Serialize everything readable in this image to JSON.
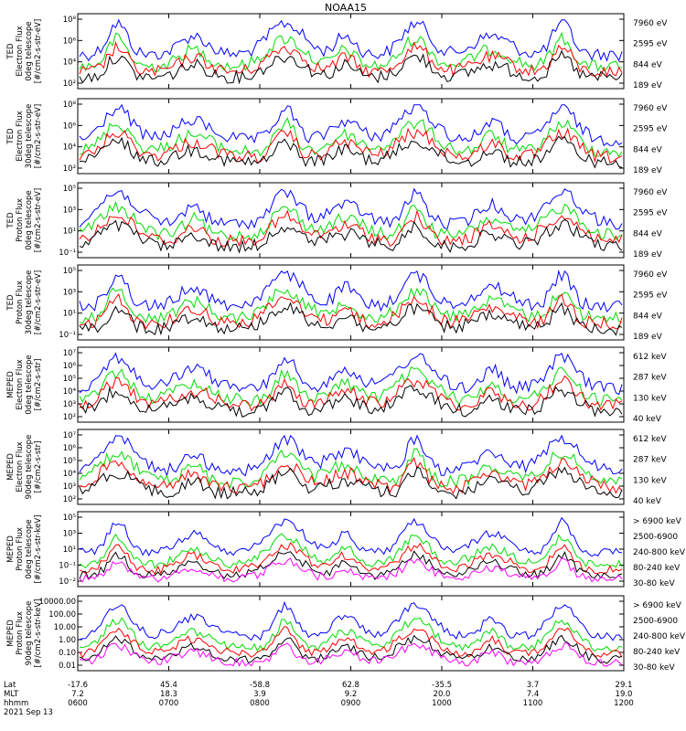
{
  "chart_data": {
    "type": "line",
    "title": "NOAA15",
    "time_axis": {
      "hhmm": [
        "0600",
        "0700",
        "0800",
        "0900",
        "1000",
        "1100",
        "1200"
      ],
      "lat": [
        "-17.6",
        "45.4",
        "-58.8",
        "62.8",
        "-35.5",
        "3.7",
        "29.1"
      ],
      "mlt": [
        "7.2",
        "18.3",
        "3.9",
        "9.2",
        "20.0",
        "7.4",
        "19.0"
      ],
      "row_labels": [
        "Lat",
        "MLT",
        "hhmm"
      ],
      "date": "2021 Sep 13"
    },
    "panels": [
      {
        "ylabel": [
          "TED",
          "Electron Flux",
          "0deg telescope",
          "[#/cm2-s-str-eV]"
        ],
        "scale": "log",
        "ticks": [
          "10²",
          "10⁴",
          "10⁶",
          "10⁸"
        ],
        "legend": [
          {
            "label": "7960 eV",
            "color": "#000000"
          },
          {
            "label": "2595 eV",
            "color": "#ff0000"
          },
          {
            "label": "844 eV",
            "color": "#00dd00"
          },
          {
            "label": "189 eV",
            "color": "#0000ff"
          }
        ]
      },
      {
        "ylabel": [
          "TED",
          "Electron Flux",
          "30deg telescope",
          "[#/cm2-s-str-eV]"
        ],
        "scale": "log",
        "ticks": [
          "10²",
          "10⁴",
          "10⁶",
          "10⁸"
        ],
        "legend": [
          {
            "label": "7960 eV",
            "color": "#000000"
          },
          {
            "label": "2595 eV",
            "color": "#ff0000"
          },
          {
            "label": "844 eV",
            "color": "#00dd00"
          },
          {
            "label": "189 eV",
            "color": "#0000ff"
          }
        ]
      },
      {
        "ylabel": [
          "TED",
          "Proton Flux",
          "0deg telescope",
          "[#/cm2-s-str-eV]"
        ],
        "scale": "log",
        "ticks": [
          "10⁻¹",
          "10¹",
          "10³",
          "10⁵"
        ],
        "legend": [
          {
            "label": "7960 eV",
            "color": "#000000"
          },
          {
            "label": "2595 eV",
            "color": "#ff0000"
          },
          {
            "label": "844 eV",
            "color": "#00dd00"
          },
          {
            "label": "189 eV",
            "color": "#0000ff"
          }
        ]
      },
      {
        "ylabel": [
          "TED",
          "Proton Flux",
          "30deg telescope",
          "[#/cm2-s-str-eV]"
        ],
        "scale": "log",
        "ticks": [
          "10⁻¹",
          "10¹",
          "10³",
          "10⁵"
        ],
        "legend": [
          {
            "label": "7960 eV",
            "color": "#000000"
          },
          {
            "label": "2595 eV",
            "color": "#ff0000"
          },
          {
            "label": "844 eV",
            "color": "#00dd00"
          },
          {
            "label": "189 eV",
            "color": "#0000ff"
          }
        ]
      },
      {
        "ylabel": [
          "MEPED",
          "Electron Flux",
          "0deg telescope",
          "[#/cm2-s-str]"
        ],
        "scale": "log",
        "ticks": [
          "10²",
          "10³",
          "10⁴",
          "10⁵",
          "10⁶",
          "10⁷"
        ],
        "legend": [
          {
            "label": "612 keV",
            "color": "#000000"
          },
          {
            "label": "287 keV",
            "color": "#ff0000"
          },
          {
            "label": "130 keV",
            "color": "#00dd00"
          },
          {
            "label": "40 keV",
            "color": "#0000ff"
          }
        ]
      },
      {
        "ylabel": [
          "MEPED",
          "Electron Flux",
          "90deg telescope",
          "[#/cm2-s-str]"
        ],
        "scale": "log",
        "ticks": [
          "10²",
          "10³",
          "10⁴",
          "10⁵",
          "10⁶",
          "10⁷"
        ],
        "legend": [
          {
            "label": "612 keV",
            "color": "#000000"
          },
          {
            "label": "287 keV",
            "color": "#ff0000"
          },
          {
            "label": "130 keV",
            "color": "#00dd00"
          },
          {
            "label": "40 keV",
            "color": "#0000ff"
          }
        ]
      },
      {
        "ylabel": [
          "MEPED",
          "Proton Flux",
          "0deg telescope",
          "[#/cm2-s-str-keV]"
        ],
        "scale": "log",
        "ticks": [
          "10⁻²",
          "10⁻¹",
          "10¹",
          "10³",
          "10⁵"
        ],
        "legend": [
          {
            "label": "> 6900 keV",
            "color": "#ff00ff"
          },
          {
            "label": "2500-6900",
            "color": "#000000"
          },
          {
            "label": "240-800 keV",
            "color": "#ff0000"
          },
          {
            "label": "80-240 keV",
            "color": "#00dd00"
          },
          {
            "label": "30-80 keV",
            "color": "#0000ff"
          }
        ]
      },
      {
        "ylabel": [
          "MEPED",
          "Proton Flux",
          "90deg telescope",
          "[#/cm2-s-str-keV]"
        ],
        "scale": "log",
        "ticks": [
          "0.01",
          "0.10",
          "1.00",
          "10.00",
          "100.00",
          "10000.00"
        ],
        "legend": [
          {
            "label": "> 6900 keV",
            "color": "#ff00ff"
          },
          {
            "label": "2500-6900",
            "color": "#000000"
          },
          {
            "label": "240-800 keV",
            "color": "#ff0000"
          },
          {
            "label": "80-240 keV",
            "color": "#00dd00"
          },
          {
            "label": "30-80 keV",
            "color": "#0000ff"
          }
        ]
      }
    ]
  }
}
